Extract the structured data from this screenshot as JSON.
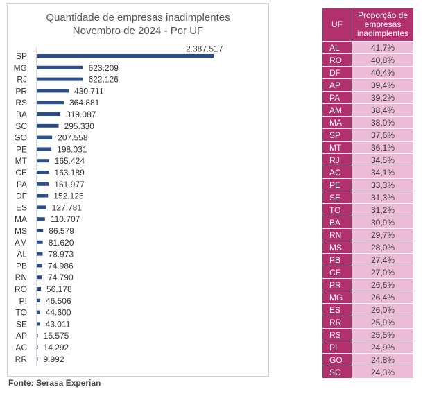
{
  "chart_data": {
    "type": "bar",
    "orientation": "horizontal",
    "title": "Quantidade de empresas inadimplentes",
    "subtitle": "Novembro de 2024 - Por UF",
    "categories": [
      "SP",
      "MG",
      "RJ",
      "PR",
      "RS",
      "BA",
      "SC",
      "GO",
      "PE",
      "MT",
      "CE",
      "PA",
      "DF",
      "ES",
      "MA",
      "MS",
      "AM",
      "AL",
      "PB",
      "RN",
      "RO",
      "PI",
      "TO",
      "SE",
      "AP",
      "AC",
      "RR"
    ],
    "values": [
      2387517,
      623209,
      622126,
      430711,
      364881,
      319087,
      295330,
      207558,
      198031,
      165424,
      163189,
      161977,
      152125,
      127781,
      110707,
      86579,
      81620,
      78973,
      74986,
      74790,
      56178,
      46506,
      44600,
      43011,
      15575,
      14292,
      9992
    ],
    "value_labels": [
      "2.387.517",
      "623.209",
      "622.126",
      "430.711",
      "364.881",
      "319.087",
      "295.330",
      "207.558",
      "198.031",
      "165.424",
      "163.189",
      "161.977",
      "152.125",
      "127.781",
      "110.707",
      "86.579",
      "81.620",
      "78.973",
      "74.986",
      "74.790",
      "56.178",
      "46.506",
      "44.600",
      "43.011",
      "15.575",
      "14.292",
      "9.992"
    ],
    "xlim": [
      0,
      2387517
    ],
    "grid": false,
    "legend": "none",
    "bar_color": "#2c4e8a"
  },
  "source": "Fonte: Serasa Experian",
  "table": {
    "headers": {
      "uf": "UF",
      "proportion": "Proporção de empresas inadimplentes"
    },
    "rows": [
      {
        "uf": "AL",
        "pct": "41,7%"
      },
      {
        "uf": "RO",
        "pct": "40,8%"
      },
      {
        "uf": "DF",
        "pct": "40,4%"
      },
      {
        "uf": "AP",
        "pct": "39,4%"
      },
      {
        "uf": "PA",
        "pct": "39,2%"
      },
      {
        "uf": "AM",
        "pct": "38,4%"
      },
      {
        "uf": "MA",
        "pct": "38,0%"
      },
      {
        "uf": "SP",
        "pct": "37,6%"
      },
      {
        "uf": "MT",
        "pct": "36,1%"
      },
      {
        "uf": "RJ",
        "pct": "34,5%"
      },
      {
        "uf": "AC",
        "pct": "34,1%"
      },
      {
        "uf": "PE",
        "pct": "33,3%"
      },
      {
        "uf": "SE",
        "pct": "31,3%"
      },
      {
        "uf": "TO",
        "pct": "31,2%"
      },
      {
        "uf": "BA",
        "pct": "30,9%"
      },
      {
        "uf": "RN",
        "pct": "29,7%"
      },
      {
        "uf": "MS",
        "pct": "28,0%"
      },
      {
        "uf": "PB",
        "pct": "27,4%"
      },
      {
        "uf": "CE",
        "pct": "27,0%"
      },
      {
        "uf": "PR",
        "pct": "26,6%"
      },
      {
        "uf": "MG",
        "pct": "26,4%"
      },
      {
        "uf": "ES",
        "pct": "26,0%"
      },
      {
        "uf": "RR",
        "pct": "25,9%"
      },
      {
        "uf": "RS",
        "pct": "25,5%"
      },
      {
        "uf": "PI",
        "pct": "24,9%"
      },
      {
        "uf": "GO",
        "pct": "24,8%"
      },
      {
        "uf": "SC",
        "pct": "24,3%"
      }
    ],
    "header_color": "#b3306f",
    "cell_color": "#ecbcd7"
  }
}
